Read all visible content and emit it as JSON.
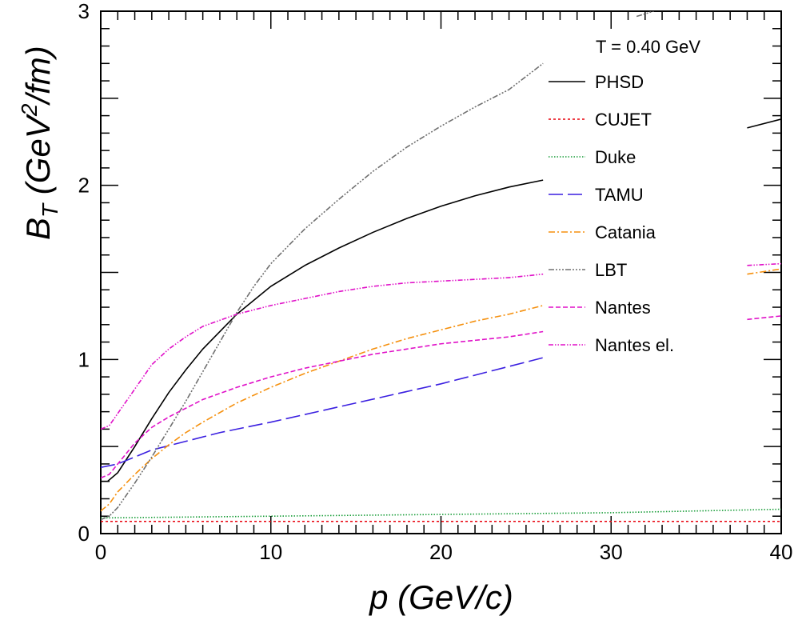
{
  "chart_data": {
    "type": "line",
    "title": "",
    "xlabel": "p (GeV/c)",
    "ylabel_main": "B",
    "ylabel_sub": "T",
    "ylabel_rest_a": " (GeV",
    "ylabel_sup": "2",
    "ylabel_rest_b": "/fm)",
    "xlim": [
      0,
      40
    ],
    "ylim": [
      0,
      3
    ],
    "x_ticks": [
      "0",
      "10",
      "20",
      "30",
      "40"
    ],
    "y_ticks": [
      "0",
      "1",
      "2",
      "3"
    ],
    "x_tick_values": [
      0,
      10,
      20,
      30,
      40
    ],
    "y_tick_values": [
      0,
      1,
      2,
      3
    ],
    "grid": false,
    "legend_placement": "top-right",
    "annotation": "T = 0.40 GeV",
    "series": [
      {
        "name": "PHSD",
        "color": "#000000",
        "dash": "",
        "segments": [
          [
            [
              0,
              0.3
            ],
            [
              0.4,
              0.3
            ],
            [
              1,
              0.35
            ],
            [
              2,
              0.5
            ],
            [
              3,
              0.66
            ],
            [
              4,
              0.81
            ],
            [
              5,
              0.94
            ],
            [
              6,
              1.06
            ],
            [
              8,
              1.26
            ],
            [
              10,
              1.42
            ],
            [
              12,
              1.54
            ],
            [
              14,
              1.64
            ],
            [
              16,
              1.73
            ],
            [
              18,
              1.81
            ],
            [
              20,
              1.88
            ],
            [
              22,
              1.94
            ],
            [
              24,
              1.99
            ],
            [
              26,
              2.03
            ]
          ],
          [
            [
              38,
              2.33
            ],
            [
              40,
              2.38
            ]
          ]
        ]
      },
      {
        "name": "CUJET",
        "color": "#e8000b",
        "dash": "3,3",
        "segments": [
          [
            [
              0,
              0.07
            ],
            [
              40,
              0.07
            ]
          ]
        ]
      },
      {
        "name": "Duke",
        "color": "#1a9e3a",
        "dash": "1.5,2",
        "segments": [
          [
            [
              0,
              0.09
            ],
            [
              10,
              0.1
            ],
            [
              20,
              0.11
            ],
            [
              30,
              0.12
            ],
            [
              40,
              0.14
            ]
          ]
        ]
      },
      {
        "name": "TAMU",
        "color": "#3a1fe0",
        "dash": "18,6",
        "segments": [
          [
            [
              0,
              0.38
            ],
            [
              1,
              0.4
            ],
            [
              2,
              0.44
            ],
            [
              3,
              0.48
            ],
            [
              5,
              0.53
            ],
            [
              7,
              0.58
            ],
            [
              10,
              0.64
            ],
            [
              15,
              0.75
            ],
            [
              20,
              0.86
            ],
            [
              26,
              1.01
            ]
          ]
        ]
      },
      {
        "name": "Catania",
        "color": "#f5900e",
        "dash": "8,3,2,3",
        "segments": [
          [
            [
              0,
              0.13
            ],
            [
              0.5,
              0.17
            ],
            [
              1,
              0.24
            ],
            [
              2,
              0.34
            ],
            [
              3,
              0.43
            ],
            [
              4,
              0.51
            ],
            [
              5,
              0.58
            ],
            [
              6,
              0.64
            ],
            [
              8,
              0.75
            ],
            [
              10,
              0.84
            ],
            [
              12,
              0.92
            ],
            [
              14,
              0.99
            ],
            [
              16,
              1.06
            ],
            [
              18,
              1.12
            ],
            [
              20,
              1.17
            ],
            [
              22,
              1.22
            ],
            [
              24,
              1.26
            ],
            [
              26,
              1.31
            ]
          ],
          [
            [
              38,
              1.49
            ],
            [
              40,
              1.52
            ]
          ]
        ]
      },
      {
        "name": "LBT",
        "color": "#707070",
        "dash": "7,2,2,2,2,2,2,2",
        "segments": [
          [
            [
              0,
              0.08
            ],
            [
              0.5,
              0.1
            ],
            [
              1,
              0.15
            ],
            [
              2,
              0.29
            ],
            [
              3,
              0.44
            ],
            [
              4,
              0.6
            ],
            [
              5,
              0.76
            ],
            [
              6,
              0.93
            ],
            [
              7,
              1.1
            ],
            [
              8,
              1.27
            ],
            [
              9,
              1.42
            ],
            [
              10,
              1.55
            ],
            [
              12,
              1.75
            ],
            [
              14,
              1.92
            ],
            [
              16,
              2.08
            ],
            [
              18,
              2.22
            ],
            [
              20,
              2.34
            ],
            [
              22,
              2.45
            ],
            [
              24,
              2.55
            ],
            [
              26,
              2.7
            ]
          ],
          [
            [
              31.5,
              2.97
            ],
            [
              32.5,
              3.0
            ]
          ]
        ]
      },
      {
        "name": "Nantes",
        "color": "#e011c8",
        "dash": "6,3",
        "segments": [
          [
            [
              0,
              0.32
            ],
            [
              0.5,
              0.34
            ],
            [
              1,
              0.4
            ],
            [
              2,
              0.52
            ],
            [
              3,
              0.61
            ],
            [
              4,
              0.67
            ],
            [
              5,
              0.72
            ],
            [
              6,
              0.77
            ],
            [
              8,
              0.84
            ],
            [
              10,
              0.9
            ],
            [
              12,
              0.95
            ],
            [
              14,
              0.99
            ],
            [
              16,
              1.03
            ],
            [
              18,
              1.06
            ],
            [
              20,
              1.09
            ],
            [
              22,
              1.11
            ],
            [
              24,
              1.13
            ],
            [
              26,
              1.16
            ]
          ],
          [
            [
              38,
              1.23
            ],
            [
              40,
              1.25
            ]
          ]
        ]
      },
      {
        "name": "Nantes el.",
        "color": "#e011c8",
        "dash": "6,2,1.5,2,1.5,2",
        "segments": [
          [
            [
              0,
              0.6
            ],
            [
              0.5,
              0.62
            ],
            [
              1,
              0.69
            ],
            [
              2,
              0.83
            ],
            [
              3,
              0.97
            ],
            [
              4,
              1.06
            ],
            [
              5,
              1.13
            ],
            [
              6,
              1.19
            ],
            [
              8,
              1.26
            ],
            [
              10,
              1.31
            ],
            [
              12,
              1.35
            ],
            [
              14,
              1.39
            ],
            [
              16,
              1.42
            ],
            [
              18,
              1.44
            ],
            [
              20,
              1.45
            ],
            [
              22,
              1.46
            ],
            [
              24,
              1.47
            ],
            [
              26,
              1.49
            ]
          ],
          [
            [
              38,
              1.54
            ],
            [
              40,
              1.55
            ]
          ]
        ]
      }
    ]
  }
}
